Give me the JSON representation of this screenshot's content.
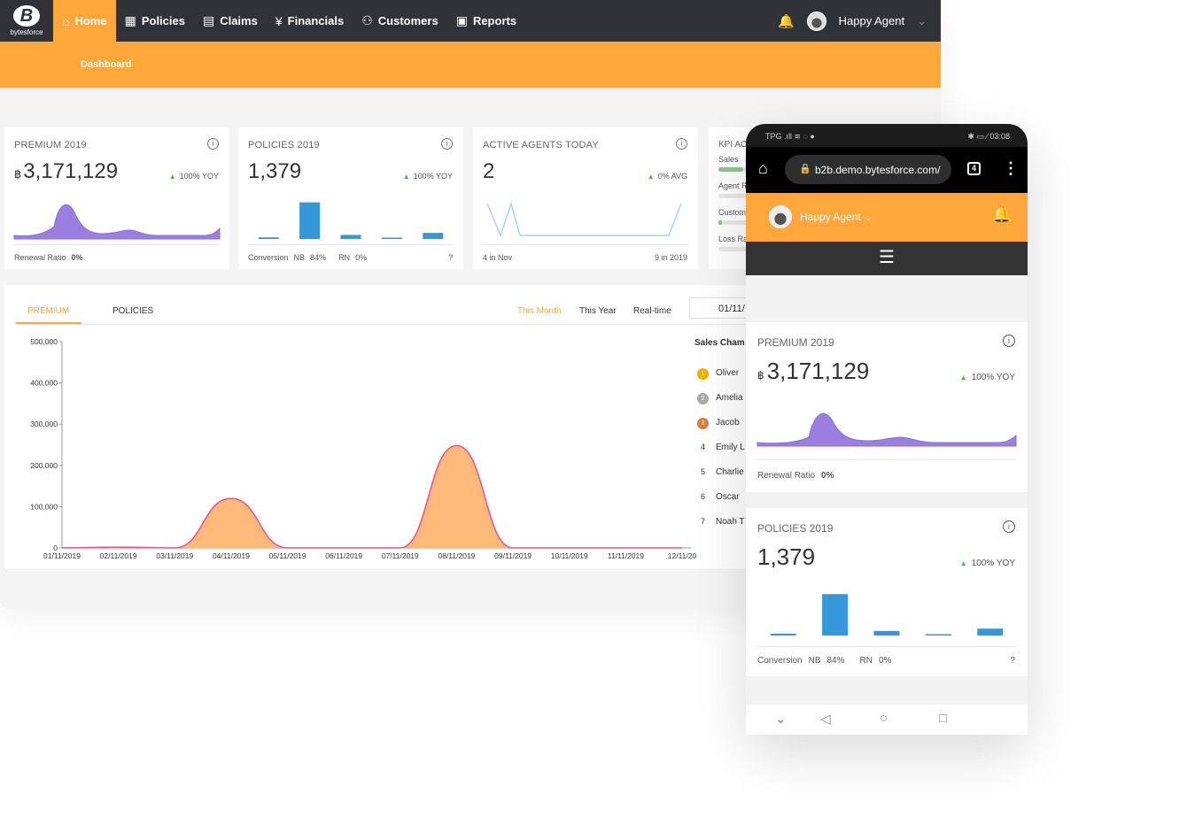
{
  "brand": {
    "logo_text": "bytesforce",
    "logo_mark": "B"
  },
  "nav": {
    "items": [
      {
        "label": "Home",
        "icon": "home-icon",
        "glyph": "⌂"
      },
      {
        "label": "Policies",
        "icon": "table-icon",
        "glyph": "▦"
      },
      {
        "label": "Claims",
        "icon": "document-icon",
        "glyph": "▤"
      },
      {
        "label": "Financials",
        "icon": "yen-icon",
        "glyph": "¥"
      },
      {
        "label": "Customers",
        "icon": "users-icon",
        "glyph": "⚇"
      },
      {
        "label": "Reports",
        "icon": "report-icon",
        "glyph": "▣"
      }
    ],
    "active": "Home",
    "user_name": "Happy Agent",
    "user_chevron": "⌄",
    "bell_glyph": "🔔"
  },
  "subnav": {
    "label": "Dashboard"
  },
  "cards": {
    "premium": {
      "title": "PREMIUM 2019",
      "currency": "฿",
      "value": "3,171,129",
      "trend": "100% YOY",
      "foot_label": "Renewal Ratio",
      "foot_value": "0%"
    },
    "policies": {
      "title": "POLICIES 2019",
      "value": "1,379",
      "trend": "100% YOY",
      "foot_label": "Conversion",
      "nb_label": "NB",
      "nb_value": "84%",
      "rn_label": "RN",
      "rn_value": "0%",
      "bars": [
        0.04,
        0.9,
        0.1,
        0.02,
        0.15
      ]
    },
    "agents": {
      "title": "ACTIVE AGENTS TODAY",
      "value": "2",
      "trend": "0% AVG",
      "foot_left": "4 in Nov",
      "foot_right": "9 in 2019"
    },
    "kpi": {
      "title": "KPI AC",
      "rows": [
        "Sales",
        "Agent R",
        "Custom",
        "Loss Ra"
      ],
      "fill": [
        0.7,
        0,
        0.05,
        0
      ]
    }
  },
  "panel": {
    "tabs": [
      "PREMIUM",
      "POLICIES"
    ],
    "active_tab": "PREMIUM",
    "ranges": [
      "This Month",
      "This Year",
      "Real-time"
    ],
    "active_range": "This Month",
    "date": "01/11/",
    "champ_title": "Sales Cham",
    "ranking": [
      {
        "rank": "1",
        "name": "Oliver",
        "medal": "#f0b000"
      },
      {
        "rank": "2",
        "name": "Amelia",
        "medal": "#aaaaaa"
      },
      {
        "rank": "3",
        "name": "Jacob",
        "medal": "#e07b39"
      },
      {
        "rank": "4",
        "name": "Emily L",
        "medal": ""
      },
      {
        "rank": "5",
        "name": "Charlie",
        "medal": ""
      },
      {
        "rank": "6",
        "name": "Oscar",
        "medal": ""
      },
      {
        "rank": "7",
        "name": "Noah T",
        "medal": ""
      }
    ]
  },
  "chart_data": {
    "type": "area",
    "x": [
      "01/11/2019",
      "02/11/2019",
      "03/11/2019",
      "04/11/2019",
      "05/11/2019",
      "06/11/2019",
      "07/11/2019",
      "08/11/2019",
      "09/11/2019",
      "10/11/2019",
      "11/11/2019",
      "12/11/20"
    ],
    "series": [
      {
        "values": [
          0,
          2000,
          0,
          120000,
          0,
          0,
          0,
          248000,
          0,
          0,
          0,
          0
        ]
      }
    ],
    "yticks": [
      "0",
      "100,000",
      "200,000",
      "300,000",
      "400,000",
      "500,000"
    ],
    "ylim": [
      0,
      500000
    ],
    "colors": {
      "fill": "#ffb978",
      "line": "#f0508a"
    }
  },
  "mobile": {
    "status_left": "TPG .ıll ≋ ◌ ●",
    "status_right": "✱ ▭ ∕ 03:08",
    "url": "b2b.demo.bytesforce.com/",
    "tabs_count": "4",
    "user_name": "Happy Agent",
    "user_chevron": "⌄",
    "premium": {
      "title": "PREMIUM 2019",
      "currency": "฿",
      "value": "3,171,129",
      "trend": "100% YOY",
      "foot_label": "Renewal Ratio",
      "foot_value": "0%"
    },
    "policies": {
      "title": "POLICIES 2019",
      "value": "1,379",
      "trend": "100% YOY",
      "foot_label": "Conversion",
      "nb_label": "NB",
      "nb_value": "84%",
      "rn_label": "RN",
      "rn_value": "0%",
      "bars": [
        0.04,
        0.9,
        0.1,
        0.02,
        0.15
      ]
    },
    "nav_glyphs": [
      "⌄",
      "◁",
      "○",
      "□"
    ]
  },
  "colors": {
    "accent": "#ffa73b",
    "nav_bg": "#2f3236",
    "purple": "#9b7fe0",
    "blue": "#3598db",
    "trend_up": "#4caf50"
  }
}
